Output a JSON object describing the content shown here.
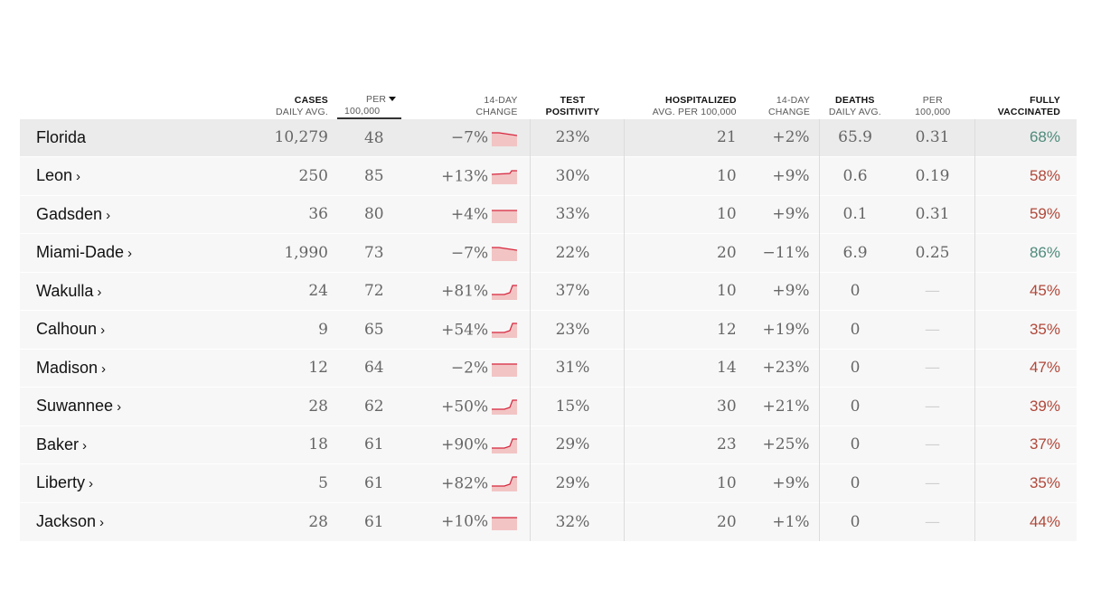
{
  "headers": {
    "cases": {
      "line1": "CASES",
      "line2": "DAILY AVG."
    },
    "per": {
      "line1": "PER",
      "line2": "100,000"
    },
    "change": {
      "line1": "14-DAY",
      "line2": "CHANGE"
    },
    "test": {
      "line1": "TEST",
      "line2": "POSITIVITY"
    },
    "hosp": {
      "line1": "HOSPITALIZED",
      "line2": "AVG. PER 100,000"
    },
    "hosp_change": {
      "line1": "14-DAY",
      "line2": "CHANGE"
    },
    "deaths": {
      "line1": "DEATHS",
      "line2": "DAILY AVG."
    },
    "deaths_per": {
      "line1": "PER",
      "line2": "100,000"
    },
    "vax": {
      "line1": "FULLY",
      "line2": "VACCINATED"
    }
  },
  "colors": {
    "vax_high": "#4f8a7b",
    "vax_low": "#b0483a",
    "spark_fill": "#f2c4c4",
    "spark_line": "#d7263d"
  },
  "rows": [
    {
      "name": "Florida",
      "arrow": "",
      "cases": "10,279",
      "per": "48",
      "change": "−7%",
      "trend": "down",
      "test": "23%",
      "hosp": "21",
      "hosp_change": "+2%",
      "deaths": "65.9",
      "deaths_per": "0.31",
      "vax": "68%",
      "vax_level": "high"
    },
    {
      "name": "Leon",
      "arrow": "›",
      "cases": "250",
      "per": "85",
      "change": "+13%",
      "trend": "up",
      "test": "30%",
      "hosp": "10",
      "hosp_change": "+9%",
      "deaths": "0.6",
      "deaths_per": "0.19",
      "vax": "58%",
      "vax_level": "low"
    },
    {
      "name": "Gadsden",
      "arrow": "›",
      "cases": "36",
      "per": "80",
      "change": "+4%",
      "trend": "flat",
      "test": "33%",
      "hosp": "10",
      "hosp_change": "+9%",
      "deaths": "0.1",
      "deaths_per": "0.31",
      "vax": "59%",
      "vax_level": "low"
    },
    {
      "name": "Miami-Dade",
      "arrow": "›",
      "cases": "1,990",
      "per": "73",
      "change": "−7%",
      "trend": "down",
      "test": "22%",
      "hosp": "20",
      "hosp_change": "−11%",
      "deaths": "6.9",
      "deaths_per": "0.25",
      "vax": "86%",
      "vax_level": "high"
    },
    {
      "name": "Wakulla",
      "arrow": "›",
      "cases": "24",
      "per": "72",
      "change": "+81%",
      "trend": "upstrong",
      "test": "37%",
      "hosp": "10",
      "hosp_change": "+9%",
      "deaths": "0",
      "deaths_per": "—",
      "vax": "45%",
      "vax_level": "low"
    },
    {
      "name": "Calhoun",
      "arrow": "›",
      "cases": "9",
      "per": "65",
      "change": "+54%",
      "trend": "upstrong",
      "test": "23%",
      "hosp": "12",
      "hosp_change": "+19%",
      "deaths": "0",
      "deaths_per": "—",
      "vax": "35%",
      "vax_level": "low"
    },
    {
      "name": "Madison",
      "arrow": "›",
      "cases": "12",
      "per": "64",
      "change": "−2%",
      "trend": "flat",
      "test": "31%",
      "hosp": "14",
      "hosp_change": "+23%",
      "deaths": "0",
      "deaths_per": "—",
      "vax": "47%",
      "vax_level": "low"
    },
    {
      "name": "Suwannee",
      "arrow": "›",
      "cases": "28",
      "per": "62",
      "change": "+50%",
      "trend": "upstrong",
      "test": "15%",
      "hosp": "30",
      "hosp_change": "+21%",
      "deaths": "0",
      "deaths_per": "—",
      "vax": "39%",
      "vax_level": "low"
    },
    {
      "name": "Baker",
      "arrow": "›",
      "cases": "18",
      "per": "61",
      "change": "+90%",
      "trend": "upstrong",
      "test": "29%",
      "hosp": "23",
      "hosp_change": "+25%",
      "deaths": "0",
      "deaths_per": "—",
      "vax": "37%",
      "vax_level": "low"
    },
    {
      "name": "Liberty",
      "arrow": "›",
      "cases": "5",
      "per": "61",
      "change": "+82%",
      "trend": "upstrong",
      "test": "29%",
      "hosp": "10",
      "hosp_change": "+9%",
      "deaths": "0",
      "deaths_per": "—",
      "vax": "35%",
      "vax_level": "low"
    },
    {
      "name": "Jackson",
      "arrow": "›",
      "cases": "28",
      "per": "61",
      "change": "+10%",
      "trend": "flat",
      "test": "32%",
      "hosp": "20",
      "hosp_change": "+1%",
      "deaths": "0",
      "deaths_per": "—",
      "vax": "44%",
      "vax_level": "low"
    }
  ]
}
